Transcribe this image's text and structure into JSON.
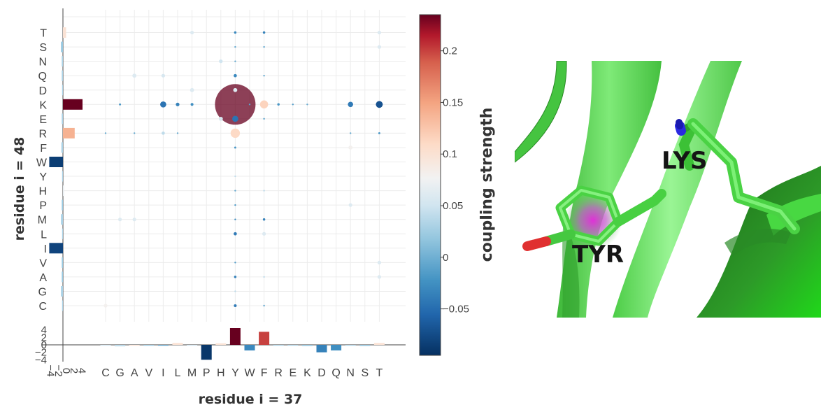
{
  "chart_data": {
    "type": "bubble-heatmap",
    "xlabel": "residue i = 37",
    "ylabel": "residue i = 48",
    "colorbar_title": "coupling strength",
    "colorbar_ticks": [
      "0.2",
      "0.15",
      "0.1",
      "0.05",
      "0",
      "−0.05"
    ],
    "colorbar_range": [
      -0.095,
      0.235
    ],
    "x_categories": [
      "C",
      "G",
      "A",
      "V",
      "I",
      "L",
      "M",
      "P",
      "H",
      "Y",
      "W",
      "F",
      "R",
      "E",
      "K",
      "D",
      "Q",
      "N",
      "S",
      "T"
    ],
    "y_categories": [
      "C",
      "G",
      "A",
      "V",
      "I",
      "L",
      "M",
      "P",
      "H",
      "Y",
      "W",
      "F",
      "R",
      "E",
      "K",
      "D",
      "Q",
      "N",
      "S",
      "T"
    ],
    "points": [
      {
        "x": "Y",
        "y": "K",
        "value": 0.235,
        "size": 1.0
      },
      {
        "x": "T",
        "y": "K",
        "value": -0.07,
        "size": 0.17
      },
      {
        "x": "F",
        "y": "K",
        "value": 0.115,
        "size": 0.2
      },
      {
        "x": "N",
        "y": "K",
        "value": -0.04,
        "size": 0.13
      },
      {
        "x": "I",
        "y": "K",
        "value": -0.045,
        "size": 0.15
      },
      {
        "x": "L",
        "y": "K",
        "value": -0.035,
        "size": 0.09
      },
      {
        "x": "M",
        "y": "K",
        "value": -0.025,
        "size": 0.07
      },
      {
        "x": "G",
        "y": "K",
        "value": -0.02,
        "size": 0.05
      },
      {
        "x": "R",
        "y": "K",
        "value": -0.02,
        "size": 0.06
      },
      {
        "x": "E",
        "y": "K",
        "value": -0.015,
        "size": 0.04
      },
      {
        "x": "W",
        "y": "K",
        "value": -0.01,
        "size": 0.03
      },
      {
        "x": "K",
        "y": "K",
        "value": -0.005,
        "size": 0.02
      },
      {
        "x": "Y",
        "y": "R",
        "value": 0.11,
        "size": 0.23
      },
      {
        "x": "Y",
        "y": "E",
        "value": -0.045,
        "size": 0.15
      },
      {
        "x": "H",
        "y": "E",
        "value": 0.055,
        "size": 0.1
      },
      {
        "x": "F",
        "y": "E",
        "value": -0.01,
        "size": 0.03
      },
      {
        "x": "I",
        "y": "R",
        "value": 0.04,
        "size": 0.08
      },
      {
        "x": "T",
        "y": "R",
        "value": -0.02,
        "size": 0.05
      },
      {
        "x": "A",
        "y": "R",
        "value": -0.005,
        "size": 0.03
      },
      {
        "x": "C",
        "y": "R",
        "value": -0.005,
        "size": 0.02
      },
      {
        "x": "L",
        "y": "R",
        "value": -0.005,
        "size": 0.02
      },
      {
        "x": "N",
        "y": "R",
        "value": -0.005,
        "size": 0.02
      },
      {
        "x": "Y",
        "y": "D",
        "value": 0.06,
        "size": 0.1
      },
      {
        "x": "M",
        "y": "D",
        "value": 0.06,
        "size": 0.1
      },
      {
        "x": "Y",
        "y": "Q",
        "value": -0.03,
        "size": 0.08
      },
      {
        "x": "A",
        "y": "Q",
        "value": 0.06,
        "size": 0.1
      },
      {
        "x": "I",
        "y": "Q",
        "value": 0.055,
        "size": 0.09
      },
      {
        "x": "F",
        "y": "Q",
        "value": -0.005,
        "size": 0.02
      },
      {
        "x": "H",
        "y": "N",
        "value": 0.05,
        "size": 0.09
      },
      {
        "x": "Y",
        "y": "N",
        "value": -0.005,
        "size": 0.02
      },
      {
        "x": "Y",
        "y": "S",
        "value": -0.005,
        "size": 0.02
      },
      {
        "x": "F",
        "y": "S",
        "value": -0.005,
        "size": 0.02
      },
      {
        "x": "T",
        "y": "S",
        "value": 0.06,
        "size": 0.09
      },
      {
        "x": "Y",
        "y": "T",
        "value": -0.03,
        "size": 0.06
      },
      {
        "x": "F",
        "y": "T",
        "value": -0.035,
        "size": 0.06
      },
      {
        "x": "M",
        "y": "T",
        "value": 0.06,
        "size": 0.09
      },
      {
        "x": "T",
        "y": "T",
        "value": 0.06,
        "size": 0.09
      },
      {
        "x": "Y",
        "y": "F",
        "value": -0.02,
        "size": 0.05
      },
      {
        "x": "N",
        "y": "F",
        "value": 0.08,
        "size": 0.1
      },
      {
        "x": "Y",
        "y": "Y",
        "value": 0.04,
        "size": 0.04
      },
      {
        "x": "Y",
        "y": "H",
        "value": -0.005,
        "size": 0.03
      },
      {
        "x": "F",
        "y": "H",
        "value": 0.04,
        "size": 0.04
      },
      {
        "x": "Y",
        "y": "P",
        "value": -0.02,
        "size": 0.04
      },
      {
        "x": "N",
        "y": "P",
        "value": 0.06,
        "size": 0.09
      },
      {
        "x": "Y",
        "y": "M",
        "value": -0.025,
        "size": 0.04
      },
      {
        "x": "F",
        "y": "M",
        "value": -0.035,
        "size": 0.06
      },
      {
        "x": "G",
        "y": "M",
        "value": 0.06,
        "size": 0.09
      },
      {
        "x": "A",
        "y": "M",
        "value": 0.06,
        "size": 0.09
      },
      {
        "x": "Y",
        "y": "L",
        "value": -0.04,
        "size": 0.08
      },
      {
        "x": "F",
        "y": "L",
        "value": 0.06,
        "size": 0.09
      },
      {
        "x": "Y",
        "y": "V",
        "value": -0.015,
        "size": 0.04
      },
      {
        "x": "T",
        "y": "V",
        "value": 0.06,
        "size": 0.09
      },
      {
        "x": "Y",
        "y": "A",
        "value": -0.035,
        "size": 0.06
      },
      {
        "x": "F",
        "y": "A",
        "value": 0.04,
        "size": 0.04
      },
      {
        "x": "T",
        "y": "A",
        "value": 0.06,
        "size": 0.09
      },
      {
        "x": "Y",
        "y": "G",
        "value": 0.04,
        "size": 0.04
      },
      {
        "x": "Y",
        "y": "C",
        "value": -0.04,
        "size": 0.07
      },
      {
        "x": "C",
        "y": "C",
        "value": 0.08,
        "size": 0.09
      },
      {
        "x": "F",
        "y": "C",
        "value": -0.005,
        "size": 0.02
      }
    ],
    "bottom_marginal": {
      "ticks": [
        "4",
        "2",
        "0",
        "−2",
        "−4"
      ],
      "range": [
        -4.5,
        4.8
      ],
      "values": [
        {
          "x": "C",
          "value": -0.2,
          "color": 0.05
        },
        {
          "x": "G",
          "value": -0.4,
          "color": 0.04
        },
        {
          "x": "A",
          "value": -0.2,
          "color": 0.1
        },
        {
          "x": "V",
          "value": -0.15,
          "color": 0.02
        },
        {
          "x": "I",
          "value": -0.2,
          "color": -0.01
        },
        {
          "x": "L",
          "value": 0.5,
          "color": 0.1
        },
        {
          "x": "M",
          "value": -0.15,
          "color": 0.05
        },
        {
          "x": "P",
          "value": -4.0,
          "color": -0.09
        },
        {
          "x": "H",
          "value": 0.4,
          "color": 0.1
        },
        {
          "x": "Y",
          "value": 4.5,
          "color": 0.235
        },
        {
          "x": "W",
          "value": -1.5,
          "color": -0.03
        },
        {
          "x": "F",
          "value": 3.5,
          "color": 0.2
        },
        {
          "x": "R",
          "value": -0.15,
          "color": 0.03
        },
        {
          "x": "E",
          "value": -0.2,
          "color": 0.03
        },
        {
          "x": "K",
          "value": -0.3,
          "color": 0.02
        },
        {
          "x": "D",
          "value": -2.0,
          "color": -0.035
        },
        {
          "x": "Q",
          "value": -1.5,
          "color": -0.025
        },
        {
          "x": "N",
          "value": -0.2,
          "color": 0.03
        },
        {
          "x": "S",
          "value": -0.3,
          "color": 0.02
        },
        {
          "x": "T",
          "value": 0.5,
          "color": 0.1
        }
      ]
    },
    "left_marginal": {
      "ticks": [
        "4",
        "2",
        "0",
        "−2",
        "−4"
      ],
      "range": [
        -4.5,
        5.5
      ],
      "values": [
        {
          "y": "C",
          "value": -0.2,
          "color": 0.03
        },
        {
          "y": "G",
          "value": -0.5,
          "color": 0.03
        },
        {
          "y": "A",
          "value": -0.3,
          "color": 0.02
        },
        {
          "y": "V",
          "value": -0.3,
          "color": 0.02
        },
        {
          "y": "I",
          "value": -3.5,
          "color": -0.08
        },
        {
          "y": "L",
          "value": -0.2,
          "color": 0.03
        },
        {
          "y": "M",
          "value": -0.5,
          "color": 0.03
        },
        {
          "y": "P",
          "value": -0.3,
          "color": 0.02
        },
        {
          "y": "H",
          "value": 0.3,
          "color": 0.07
        },
        {
          "y": "Y",
          "value": -0.2,
          "color": 0.03
        },
        {
          "y": "W",
          "value": -3.5,
          "color": -0.085
        },
        {
          "y": "F",
          "value": -0.4,
          "color": 0.03
        },
        {
          "y": "R",
          "value": 3.0,
          "color": 0.14
        },
        {
          "y": "E",
          "value": -0.3,
          "color": 0.03
        },
        {
          "y": "K",
          "value": 5.0,
          "color": 0.235
        },
        {
          "y": "D",
          "value": -0.2,
          "color": 0.03
        },
        {
          "y": "Q",
          "value": -0.3,
          "color": 0.03
        },
        {
          "y": "N",
          "value": -0.3,
          "color": 0.03
        },
        {
          "y": "S",
          "value": -0.5,
          "color": 0.02
        },
        {
          "y": "T",
          "value": 0.8,
          "color": 0.1
        }
      ]
    }
  },
  "structure_image": {
    "labels": {
      "lys": "LYS",
      "tyr": "TYR"
    },
    "colors": {
      "strand": "#55d650",
      "strand_light": "#8ff289",
      "strand_dark": "#1f7a1c",
      "nitrogen": "#2a2ae0",
      "oxygen": "#e03030",
      "ring_center": "#e030d8"
    }
  }
}
